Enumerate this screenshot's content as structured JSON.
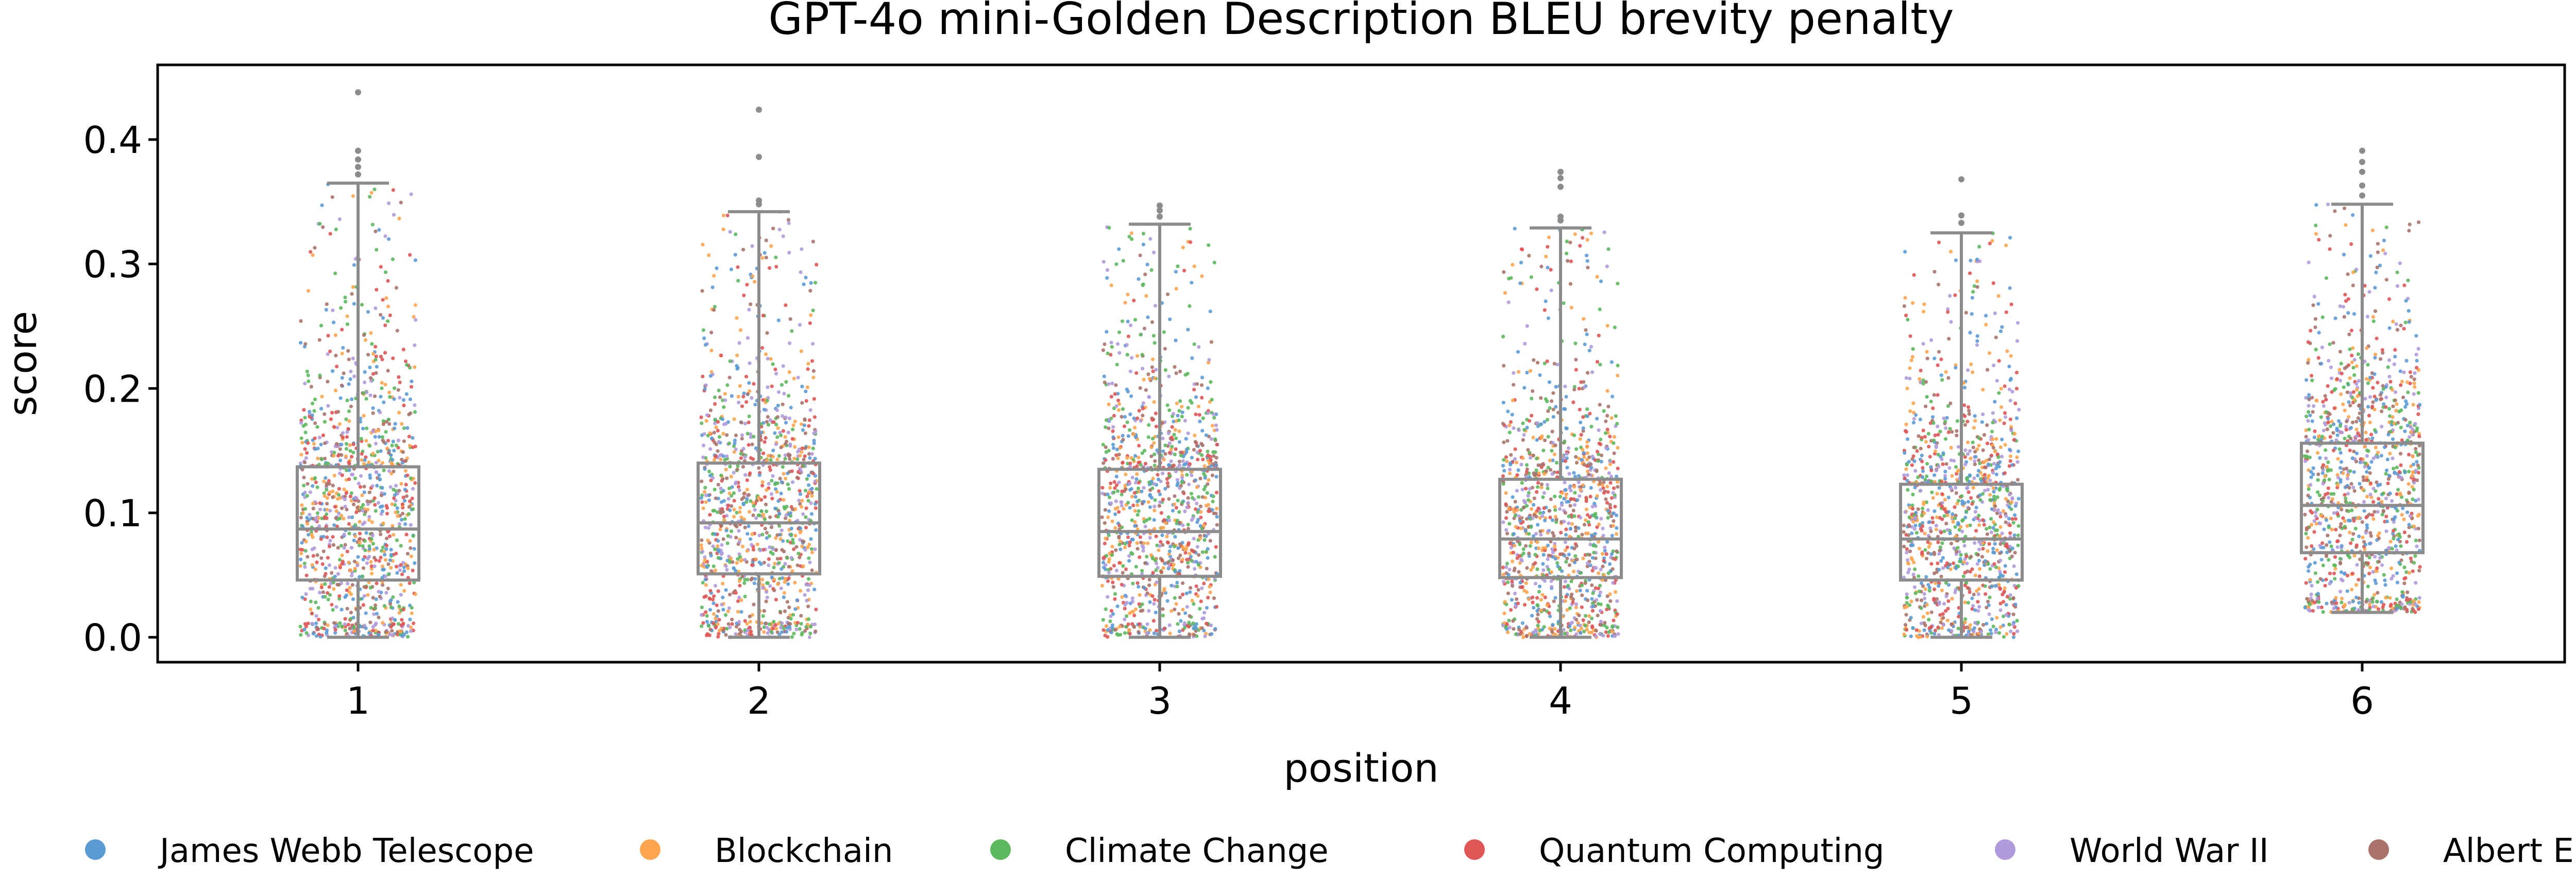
{
  "chart_data": {
    "type": "box-strip",
    "title": "GPT-4o mini-Golden Description BLEU brevity penalty",
    "xlabel": "position",
    "ylabel": "score",
    "ylim": [
      -0.02,
      0.46
    ],
    "yticks": [
      0.0,
      0.1,
      0.2,
      0.3,
      0.4
    ],
    "ytick_labels": [
      "0.0",
      "0.1",
      "0.2",
      "0.3",
      "0.4"
    ],
    "grid": false,
    "legend_position": "bottom",
    "categories": [
      "1",
      "2",
      "3",
      "4",
      "5",
      "6"
    ],
    "series": [
      {
        "name": "James Webb Telescope",
        "color": "#5B9BD5"
      },
      {
        "name": "Blockchain",
        "color": "#FFA54F"
      },
      {
        "name": "Climate Change",
        "color": "#5CB85C"
      },
      {
        "name": "Quantum Computing",
        "color": "#E05555"
      },
      {
        "name": "World War II",
        "color": "#B09ADB"
      },
      {
        "name": "Albert Einstein",
        "color": "#A9736B"
      }
    ],
    "boxes": [
      {
        "position": "1",
        "whisker_low": 0.0,
        "q1": 0.046,
        "median": 0.087,
        "q3": 0.137,
        "whisker_high": 0.365,
        "outliers": [
          0.372,
          0.378,
          0.384,
          0.391,
          0.438
        ]
      },
      {
        "position": "2",
        "whisker_low": 0.0,
        "q1": 0.051,
        "median": 0.092,
        "q3": 0.14,
        "whisker_high": 0.342,
        "outliers": [
          0.348,
          0.351,
          0.386,
          0.424
        ]
      },
      {
        "position": "3",
        "whisker_low": 0.0,
        "q1": 0.049,
        "median": 0.085,
        "q3": 0.135,
        "whisker_high": 0.332,
        "outliers": [
          0.338,
          0.343,
          0.347
        ]
      },
      {
        "position": "4",
        "whisker_low": 0.0,
        "q1": 0.048,
        "median": 0.079,
        "q3": 0.127,
        "whisker_high": 0.329,
        "outliers": [
          0.335,
          0.338,
          0.362,
          0.369,
          0.374
        ]
      },
      {
        "position": "5",
        "whisker_low": 0.0,
        "q1": 0.046,
        "median": 0.079,
        "q3": 0.123,
        "whisker_high": 0.325,
        "outliers": [
          0.333,
          0.339,
          0.368
        ]
      },
      {
        "position": "6",
        "whisker_low": 0.02,
        "q1": 0.068,
        "median": 0.106,
        "q3": 0.156,
        "whisker_high": 0.348,
        "outliers": [
          0.355,
          0.363,
          0.374,
          0.382,
          0.391
        ]
      }
    ],
    "strip_points_per_position": 1100
  },
  "colors": {
    "box_stroke": "#8C8C8C",
    "axis": "#000000"
  }
}
